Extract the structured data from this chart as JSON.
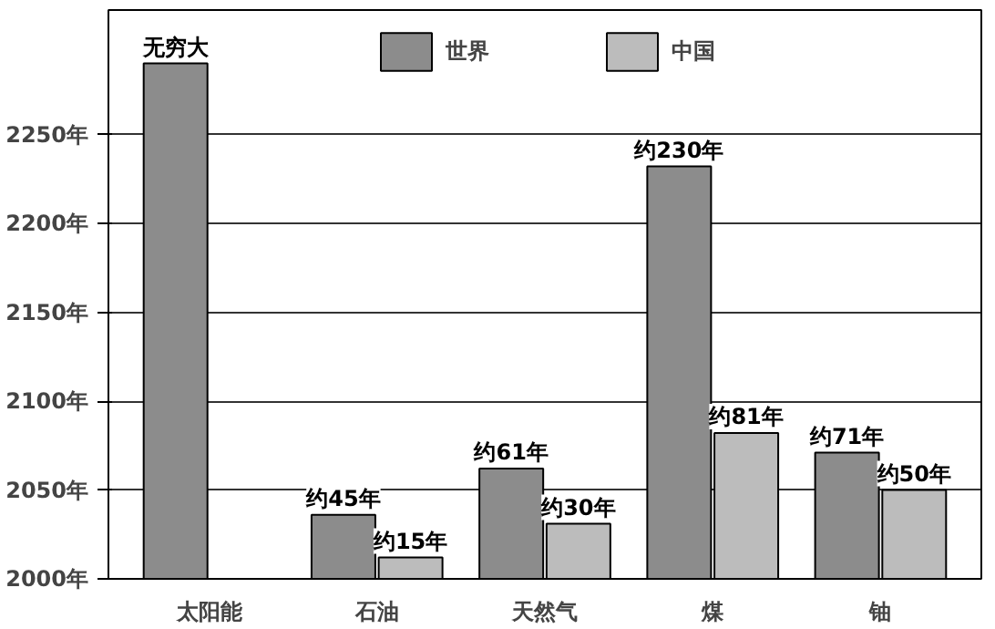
{
  "chart_data": {
    "type": "bar",
    "categories": [
      "太阳能",
      "石油",
      "天然气",
      "煤",
      "铀"
    ],
    "series": [
      {
        "name": "世界",
        "color": "#8c8c8c",
        "values": [
          2290,
          2036,
          2062,
          2232,
          2071
        ],
        "value_labels": [
          "无穷大",
          "约45年",
          "约61年",
          "约230年",
          "约71年"
        ]
      },
      {
        "name": "中国",
        "color": "#bcbcbc",
        "values": [
          null,
          2012,
          2031,
          2082,
          2050
        ],
        "value_labels": [
          null,
          "约15年",
          "约30年",
          "约81年",
          "约50年"
        ]
      }
    ],
    "ylim": [
      2000,
      2320
    ],
    "yticks": [
      {
        "value": 2000,
        "label": "2000年"
      },
      {
        "value": 2050,
        "label": "2050年"
      },
      {
        "value": 2100,
        "label": "2100年"
      },
      {
        "value": 2150,
        "label": "2150年"
      },
      {
        "value": 2200,
        "label": "2200年"
      },
      {
        "value": 2250,
        "label": "2250年"
      }
    ],
    "grid": "y",
    "legend": "top"
  }
}
